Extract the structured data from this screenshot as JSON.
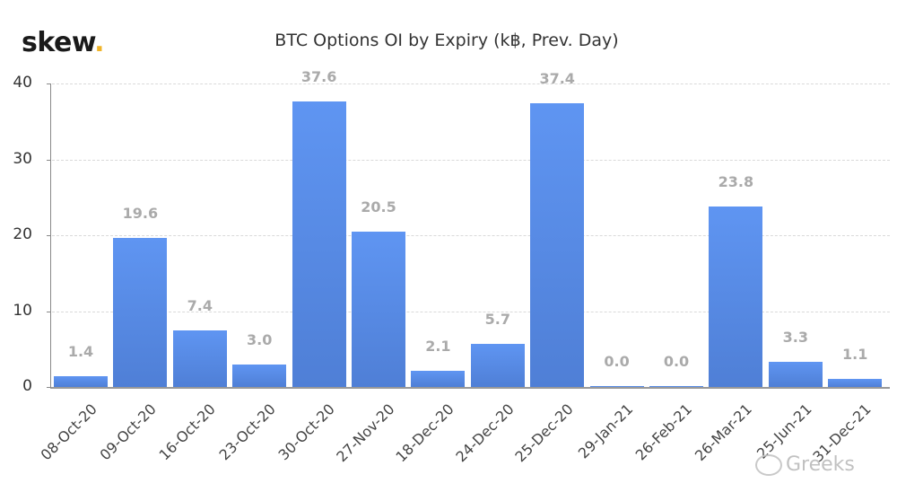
{
  "header": {
    "logo_text": "skew",
    "logo_dot": ".",
    "title": "BTC Options OI by Expiry (k฿, Prev. Day)"
  },
  "watermark": {
    "icon": "wechat-icon",
    "text": "Greeks"
  },
  "colors": {
    "bar": "#5b8def",
    "logo_dot": "#f0b429",
    "value_label": "#aaaaaa"
  },
  "chart_data": {
    "type": "bar",
    "title": "BTC Options OI by Expiry (k฿, Prev. Day)",
    "xlabel": "",
    "ylabel": "",
    "ylim": [
      0,
      40
    ],
    "yticks": [
      0,
      10,
      20,
      30,
      40
    ],
    "grid": true,
    "legend": null,
    "categories": [
      "08-Oct-20",
      "09-Oct-20",
      "16-Oct-20",
      "23-Oct-20",
      "30-Oct-20",
      "27-Nov-20",
      "18-Dec-20",
      "24-Dec-20",
      "25-Dec-20",
      "29-Jan-21",
      "26-Feb-21",
      "26-Mar-21",
      "25-Jun-21",
      "31-Dec-21"
    ],
    "values": [
      1.4,
      19.6,
      7.4,
      3.0,
      37.6,
      20.5,
      2.1,
      5.7,
      37.4,
      0.0,
      0.0,
      23.8,
      3.3,
      1.1
    ],
    "value_labels": [
      "1.4",
      "19.6",
      "7.4",
      "3.0",
      "37.6",
      "20.5",
      "2.1",
      "5.7",
      "37.4",
      "0.0",
      "0.0",
      "23.8",
      "3.3",
      "1.1"
    ]
  }
}
